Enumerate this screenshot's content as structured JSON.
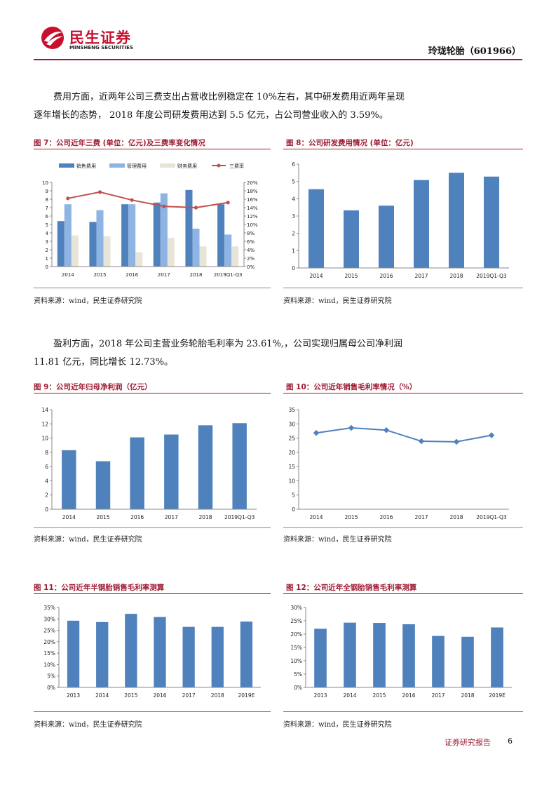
{
  "header": {
    "logo_cn": "民生证券",
    "logo_en": "MINSHENG SECURITIES",
    "company": "玲珑轮胎（601966）"
  },
  "colors": {
    "brand": "#9e1b32",
    "bar": "#4f81bd",
    "bar_light": "#8db4e2",
    "bar_pale": "#e8e4d8",
    "line": "#c0504d"
  },
  "paragraphs": [
    {
      "line1": "费用方面，近两年公司三费支出占营收比例稳定在 10%左右，其中研发费用近两年呈现",
      "line2": "逐年增长的态势，  2018 年度公司研发费用达到 5.5 亿元，占公司营业收入的 3.59%。"
    },
    {
      "line1": "盈利方面，2018  年公司主营业务轮胎毛利率为  23.61%,，公司实现归属母公司净利润",
      "line2": "11.81 亿元，同比增长 12.73%。"
    }
  ],
  "source_text": "资料来源：wind，民生证券研究院",
  "footer": {
    "label": "证券研究报告",
    "page": "6"
  },
  "chart_data": [
    {
      "id": "fig7",
      "type": "bar",
      "title": "图 7：公司近年三费 (单位：亿元)及三费率变化情况",
      "categories": [
        "2014",
        "2015",
        "2016",
        "2017",
        "2018",
        "2019Q1-Q3"
      ],
      "series": [
        {
          "name": "销售费用",
          "values": [
            5.4,
            5.3,
            7.4,
            7.6,
            9.1,
            7.4
          ]
        },
        {
          "name": "管理费用",
          "values": [
            7.4,
            6.7,
            7.4,
            8.7,
            4.5,
            3.8
          ]
        },
        {
          "name": "财务费用",
          "values": [
            3.7,
            3.6,
            1.7,
            3.4,
            2.4,
            2.4
          ]
        },
        {
          "name": "三费率",
          "type": "line",
          "axis": "right",
          "values": [
            16.2,
            17.7,
            15.8,
            14.3,
            14.0,
            15.2
          ]
        }
      ],
      "ylim": [
        0,
        10
      ],
      "yticks": [
        "0",
        "1",
        "2",
        "3",
        "4",
        "5",
        "6",
        "7",
        "8",
        "9",
        "10"
      ],
      "y2lim": [
        0,
        20
      ],
      "y2ticks": [
        "0%",
        "2%",
        "4%",
        "6%",
        "8%",
        "10%",
        "12%",
        "14%",
        "16%",
        "18%",
        "20%"
      ]
    },
    {
      "id": "fig8",
      "type": "bar",
      "title": "图 8：公司研发费用情况 (单位：亿元)",
      "categories": [
        "2014",
        "2015",
        "2016",
        "2017",
        "2018",
        "2019Q1-Q3"
      ],
      "values": [
        4.55,
        3.33,
        3.6,
        5.08,
        5.5,
        5.28
      ],
      "ylim": [
        0,
        6
      ],
      "yticks": [
        "0",
        "1",
        "2",
        "3",
        "4",
        "5",
        "6"
      ]
    },
    {
      "id": "fig9",
      "type": "bar",
      "title": "图 9：公司近年归母净利润（亿元）",
      "categories": [
        "2014",
        "2015",
        "2016",
        "2017",
        "2018",
        "2019Q1-Q3"
      ],
      "values": [
        8.3,
        6.75,
        10.1,
        10.5,
        11.8,
        12.1
      ],
      "ylim": [
        0,
        14
      ],
      "yticks": [
        "0",
        "2",
        "4",
        "6",
        "8",
        "10",
        "12",
        "14"
      ]
    },
    {
      "id": "fig10",
      "type": "line",
      "title": "图 10：公司近年销售毛利率情况（%）",
      "categories": [
        "2014",
        "2015",
        "2016",
        "2017",
        "2018",
        "2019Q1-Q3"
      ],
      "values": [
        26.8,
        28.6,
        27.8,
        23.9,
        23.7,
        26.0
      ],
      "ylim": [
        0,
        35
      ],
      "yticks": [
        "0",
        "5",
        "10",
        "15",
        "20",
        "25",
        "30",
        "35"
      ]
    },
    {
      "id": "fig11",
      "type": "bar",
      "title": "图 11：公司近年半钢胎销售毛利率测算",
      "categories": [
        "2013",
        "2014",
        "2015",
        "2016",
        "2017",
        "2018",
        "2019E"
      ],
      "values": [
        29.2,
        28.6,
        32.2,
        30.8,
        26.5,
        26.5,
        28.8
      ],
      "ylim": [
        0,
        35
      ],
      "yticks": [
        "0%",
        "5%",
        "10%",
        "15%",
        "20%",
        "25%",
        "30%",
        "35%"
      ]
    },
    {
      "id": "fig12",
      "type": "bar",
      "title": "图 12：公司近年全钢胎销售毛利率测算",
      "categories": [
        "2013",
        "2014",
        "2015",
        "2016",
        "2017",
        "2018",
        "2019E"
      ],
      "values": [
        22.0,
        24.3,
        24.2,
        23.7,
        19.3,
        19.0,
        22.5
      ],
      "ylim": [
        0,
        30
      ],
      "yticks": [
        "0%",
        "5%",
        "10%",
        "15%",
        "20%",
        "25%",
        "30%"
      ]
    }
  ]
}
